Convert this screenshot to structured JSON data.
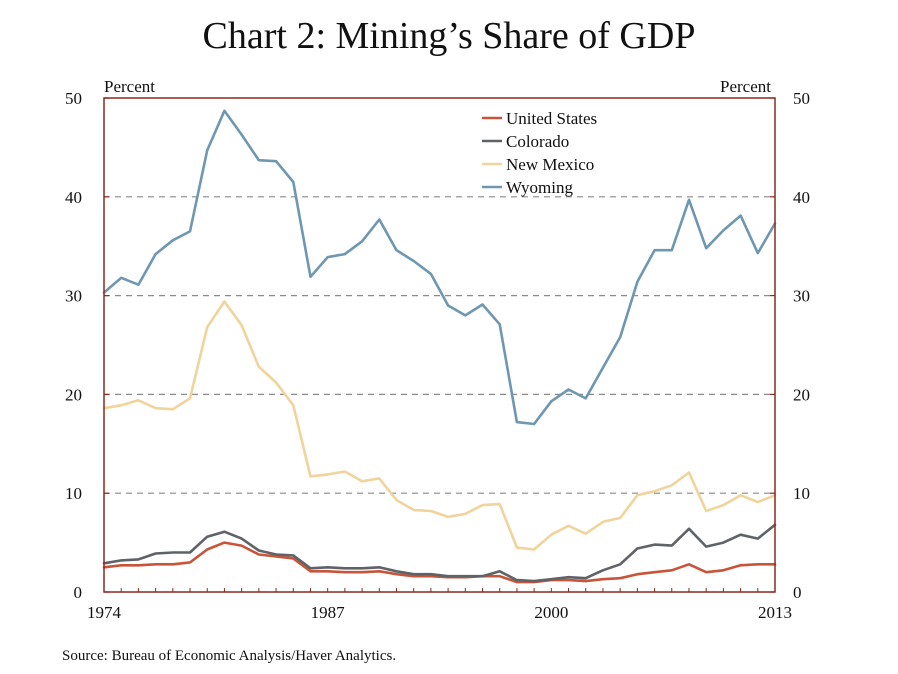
{
  "title": "Chart 2: Mining’s Share of GDP",
  "source": "Source: Bureau of Economic Analysis/Haver Analytics.",
  "colors": {
    "frame": "#8b2a1f",
    "grid": "#8a8a8a",
    "United States": "#c8553a",
    "Colorado": "#5f6266",
    "New Mexico": "#f1d39c",
    "Wyoming": "#6e97b1"
  },
  "chart_data": {
    "type": "line",
    "title": "Chart 2: Mining’s Share of GDP",
    "left_axis_label": "Percent",
    "right_axis_label": "Percent",
    "ylim": [
      0,
      50
    ],
    "yticks": [
      "0",
      "10",
      "20",
      "30",
      "40",
      "50"
    ],
    "ytick_values": [
      0,
      10,
      20,
      30,
      40,
      50
    ],
    "xlim": [
      1974,
      2013
    ],
    "xticks": [
      "1974",
      "1987",
      "2000",
      "2013"
    ],
    "xtick_values": [
      1974,
      1987,
      2000,
      2013
    ],
    "grid": "horizontal dashed",
    "legend_placement": "top-center",
    "x": [
      1974,
      1975,
      1976,
      1977,
      1978,
      1979,
      1980,
      1981,
      1982,
      1983,
      1984,
      1985,
      1986,
      1987,
      1988,
      1989,
      1990,
      1991,
      1992,
      1993,
      1994,
      1995,
      1996,
      1997,
      1998,
      1999,
      2000,
      2001,
      2002,
      2003,
      2004,
      2005,
      2006,
      2007,
      2008,
      2009,
      2010,
      2011,
      2012,
      2013
    ],
    "series": [
      {
        "name": "United States",
        "values": [
          2.5,
          2.7,
          2.7,
          2.8,
          2.8,
          3.0,
          4.3,
          5.0,
          4.7,
          3.8,
          3.6,
          3.4,
          2.1,
          2.1,
          2.0,
          2.0,
          2.1,
          1.8,
          1.6,
          1.6,
          1.5,
          1.5,
          1.6,
          1.6,
          1.0,
          1.0,
          1.2,
          1.2,
          1.1,
          1.3,
          1.4,
          1.8,
          2.0,
          2.2,
          2.8,
          2.0,
          2.2,
          2.7,
          2.8,
          2.8
        ]
      },
      {
        "name": "Colorado",
        "values": [
          2.9,
          3.2,
          3.3,
          3.9,
          4.0,
          4.0,
          5.6,
          6.1,
          5.4,
          4.2,
          3.8,
          3.7,
          2.4,
          2.5,
          2.4,
          2.4,
          2.5,
          2.1,
          1.8,
          1.8,
          1.6,
          1.6,
          1.6,
          2.1,
          1.2,
          1.1,
          1.3,
          1.5,
          1.4,
          2.2,
          2.8,
          4.4,
          4.8,
          4.7,
          6.4,
          4.6,
          5.0,
          5.8,
          5.4,
          6.8
        ]
      },
      {
        "name": "New Mexico",
        "values": [
          18.6,
          18.9,
          19.4,
          18.6,
          18.5,
          19.6,
          26.8,
          29.4,
          27.0,
          22.8,
          21.2,
          18.9,
          11.7,
          11.9,
          12.2,
          11.2,
          11.5,
          9.3,
          8.3,
          8.2,
          7.6,
          7.9,
          8.8,
          8.9,
          4.5,
          4.3,
          5.8,
          6.7,
          5.9,
          7.1,
          7.5,
          9.8,
          10.2,
          10.8,
          12.1,
          8.2,
          8.8,
          9.8,
          9.1,
          9.8
        ]
      },
      {
        "name": "Wyoming",
        "values": [
          30.3,
          31.8,
          31.1,
          34.2,
          35.6,
          36.5,
          44.7,
          48.7,
          46.3,
          43.7,
          43.6,
          41.5,
          31.9,
          33.9,
          34.2,
          35.5,
          37.7,
          34.6,
          33.5,
          32.2,
          29.0,
          28.0,
          29.1,
          27.1,
          17.2,
          17.0,
          19.3,
          20.5,
          19.6,
          22.7,
          25.8,
          31.4,
          34.6,
          34.6,
          39.7,
          34.8,
          36.6,
          38.1,
          34.3,
          37.3
        ]
      }
    ]
  }
}
